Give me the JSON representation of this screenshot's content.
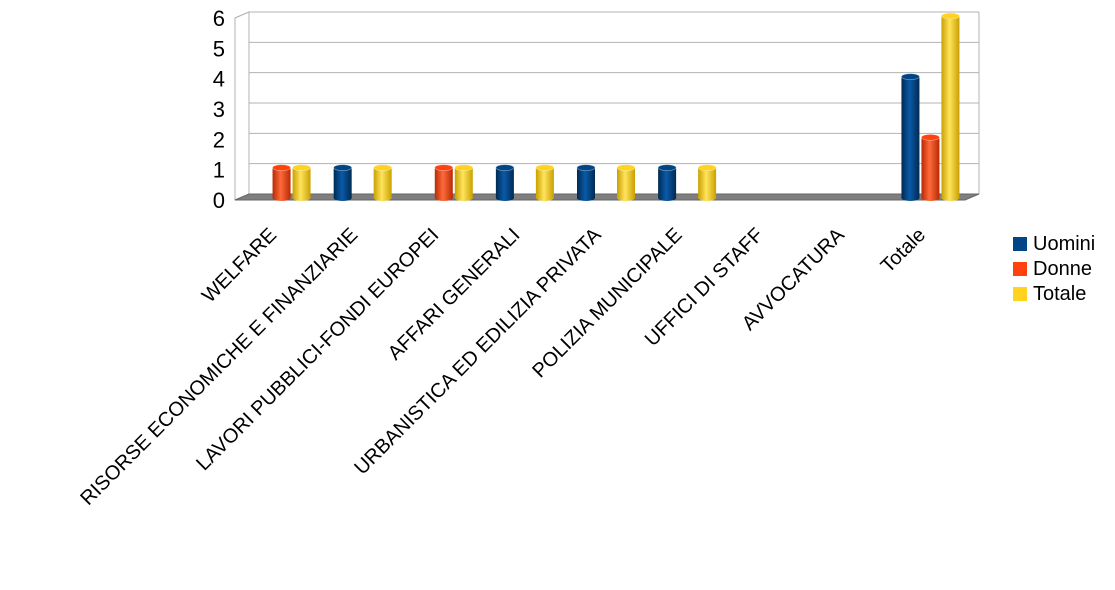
{
  "chart_data": {
    "type": "bar",
    "categories": [
      "WELFARE",
      "RISORSE ECONOMICHE E FINANZIARIE",
      "LAVORI PUBBLICI-FONDI EUROPEI",
      "AFFARI GENERALI",
      "URBANISTICA ED EDILIZIA PRIVATA",
      "POLIZIA MUNICIPALE",
      "UFFICI DI STAFF",
      "AVVOCATURA",
      "Totale"
    ],
    "series": [
      {
        "name": "Uomini",
        "color": "#004586",
        "values": [
          0,
          1,
          0,
          1,
          1,
          1,
          0,
          0,
          4
        ]
      },
      {
        "name": "Donne",
        "color": "#ff420e",
        "values": [
          1,
          0,
          1,
          0,
          0,
          0,
          0,
          0,
          2
        ]
      },
      {
        "name": "Totale",
        "color": "#ffd320",
        "values": [
          1,
          1,
          1,
          1,
          1,
          1,
          0,
          0,
          6
        ]
      }
    ],
    "yticks": [
      "0",
      "1",
      "2",
      "3",
      "4",
      "5",
      "6"
    ],
    "ylim": [
      0,
      6
    ],
    "grid": true,
    "legend": "right",
    "style": "3d-cylinder"
  }
}
